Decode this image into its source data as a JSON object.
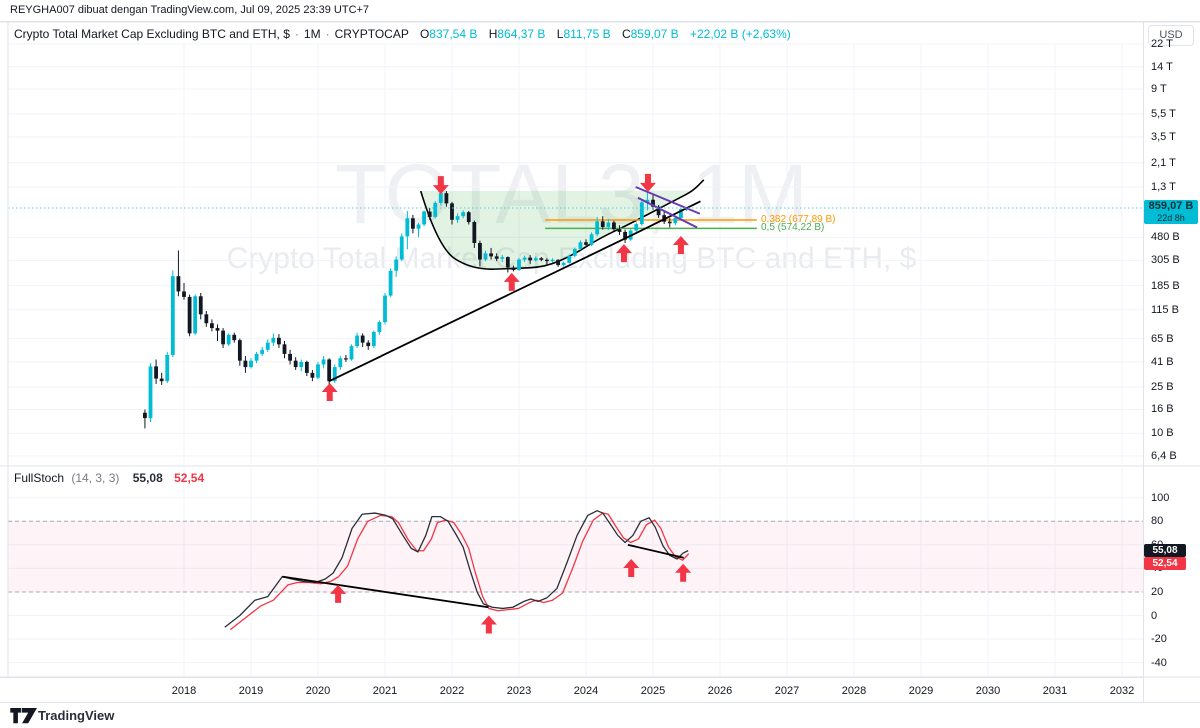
{
  "user_bar": {
    "text": "REYGHA007 dibuat dengan TradingView.com, Jul 09, 2025 23:39 UTC+7"
  },
  "legend": {
    "title": "Crypto Total Market Cap Excluding BTC and ETH, $",
    "sep": "·",
    "interval": "1M",
    "exchange": "CRYPTOCAP",
    "o_label": "O",
    "o": "837,54 B",
    "h_label": "H",
    "h": "864,37 B",
    "l_label": "L",
    "l": "811,75 B",
    "c_label": "C",
    "c": "859,07 B",
    "change": "+22,02 B (+2,63%)"
  },
  "axis": {
    "currency_button": "USD",
    "price_ticks": [
      {
        "v": 22000,
        "t": "22 T"
      },
      {
        "v": 14000,
        "t": "14 T"
      },
      {
        "v": 9000,
        "t": "9 T"
      },
      {
        "v": 5500,
        "t": "5,5 T"
      },
      {
        "v": 3500,
        "t": "3,5 T"
      },
      {
        "v": 2100,
        "t": "2,1 T"
      },
      {
        "v": 1300,
        "t": "1,3 T"
      },
      {
        "v": 480,
        "t": "480 B"
      },
      {
        "v": 305,
        "t": "305 B"
      },
      {
        "v": 185,
        "t": "185 B"
      },
      {
        "v": 115,
        "t": "115 B"
      },
      {
        "v": 65,
        "t": "65 B"
      },
      {
        "v": 41,
        "t": "41 B"
      },
      {
        "v": 25,
        "t": "25 B"
      },
      {
        "v": 16,
        "t": "16 B"
      },
      {
        "v": 10,
        "t": "10 B"
      },
      {
        "v": 6.4,
        "t": "6,4 B"
      }
    ],
    "stoch_ticks": [
      {
        "v": 100,
        "t": "100"
      },
      {
        "v": 80,
        "t": "80"
      },
      {
        "v": 60,
        "t": "60"
      },
      {
        "v": 40,
        "t": "40"
      },
      {
        "v": 20,
        "t": "20"
      },
      {
        "v": 0,
        "t": "0"
      },
      {
        "v": -20,
        "t": "-20"
      },
      {
        "v": -40,
        "t": "-40"
      }
    ],
    "years": [
      "2018",
      "2019",
      "2020",
      "2021",
      "2022",
      "2023",
      "2024",
      "2025",
      "2026",
      "2027",
      "2028",
      "2029",
      "2030",
      "2031",
      "2032"
    ]
  },
  "price_badge": {
    "price": "859,07 B",
    "countdown": "22d 8h"
  },
  "indicator": {
    "name": "FullStoch",
    "params": "(14, 3, 3)",
    "k_value": "55,08",
    "d_value": "52,54"
  },
  "fib_levels": [
    {
      "label": "0,382 (677,89 B)",
      "value": 677.89,
      "color": "#ff9800",
      "m1": 64.7,
      "m2": 102.6
    },
    {
      "label": "0,5 (574,22 B)",
      "value": 574.22,
      "color": "#4caf50",
      "m1": 64.7,
      "m2": 102.6
    }
  ],
  "watermark": {
    "line1": "TOTAL3, 1M",
    "line2": "Crypto Total Market Cap Excluding BTC and ETH, $"
  },
  "footer": {
    "logo_text": "TradingView"
  },
  "colors": {
    "up": "#00bcd4",
    "down": "#131722",
    "arrow": "#f23645",
    "purple": "#673ab7",
    "trend": "#000000",
    "grid": "#f0f3fa",
    "stoch_k": "#2a2e39",
    "stoch_d": "#f23645",
    "band_border": "#a9acb5",
    "band_fill": "rgba(236,64,122,0.06)",
    "cup_fill": "rgba(76,175,80,0.16)",
    "price_line": "#4dd0e1"
  },
  "chart_data": {
    "type": "candlestick",
    "title": "Crypto Total Market Cap Excluding BTC and ETH, $",
    "symbol": "CRYPTOCAP:TOTAL3",
    "interval": "1M",
    "price_scale": "log",
    "price_axis_range_billions": [
      6.4,
      22000
    ],
    "time_axis_range": [
      "2017-06",
      "2032-12"
    ],
    "last_price": 859.07,
    "last_change": "+22,02 B (+2,63%)",
    "countdown": "22d 8h",
    "candles_unit": "billions USD [month, open, high, low, close]",
    "candles": [
      [
        "2017-06",
        15,
        16,
        11,
        13.5
      ],
      [
        "2017-07",
        13.5,
        40,
        12.5,
        37.5
      ],
      [
        "2017-08",
        37.5,
        43,
        26.5,
        29.5
      ],
      [
        "2017-09",
        29.5,
        33,
        26,
        28
      ],
      [
        "2017-10",
        28,
        50,
        27,
        47
      ],
      [
        "2017-11",
        47,
        250,
        45,
        223
      ],
      [
        "2017-12",
        223,
        371,
        150,
        165
      ],
      [
        "2018-01",
        165,
        195,
        140,
        148
      ],
      [
        "2018-02",
        148,
        155,
        68,
        72
      ],
      [
        "2018-03",
        72,
        155,
        70,
        150
      ],
      [
        "2018-04",
        150,
        160,
        95,
        105
      ],
      [
        "2018-05",
        105,
        112,
        82,
        88
      ],
      [
        "2018-06",
        88,
        95,
        75,
        80
      ],
      [
        "2018-07",
        80,
        86,
        62,
        76
      ],
      [
        "2018-08",
        76,
        80,
        54,
        58
      ],
      [
        "2018-09",
        58,
        72,
        56,
        70
      ],
      [
        "2018-10",
        70,
        73,
        60,
        63
      ],
      [
        "2018-11",
        63,
        65,
        38,
        42
      ],
      [
        "2018-12",
        42,
        46,
        33,
        37
      ],
      [
        "2019-01",
        37,
        44,
        36,
        42
      ],
      [
        "2019-02",
        42,
        50,
        40,
        48
      ],
      [
        "2019-03",
        48,
        55,
        46,
        52
      ],
      [
        "2019-04",
        52,
        64,
        50,
        60
      ],
      [
        "2019-05",
        60,
        72,
        56,
        66
      ],
      [
        "2019-06",
        66,
        71,
        54,
        58
      ],
      [
        "2019-07",
        58,
        62,
        44,
        48
      ],
      [
        "2019-08",
        48,
        52,
        39,
        42
      ],
      [
        "2019-09",
        42,
        45,
        35,
        37
      ],
      [
        "2019-10",
        37,
        43,
        34,
        41
      ],
      [
        "2019-11",
        41,
        42,
        31,
        33
      ],
      [
        "2019-12",
        33,
        35,
        28,
        30
      ],
      [
        "2020-01",
        30,
        41,
        29,
        39
      ],
      [
        "2020-02",
        39,
        46,
        36,
        43
      ],
      [
        "2020-03",
        43,
        44,
        20,
        28
      ],
      [
        "2020-04",
        28,
        39,
        27,
        37
      ],
      [
        "2020-05",
        37,
        46,
        35,
        44
      ],
      [
        "2020-06",
        44,
        47,
        41,
        43
      ],
      [
        "2020-07",
        43,
        58,
        42,
        56
      ],
      [
        "2020-08",
        56,
        73,
        54,
        69
      ],
      [
        "2020-09",
        69,
        72,
        55,
        60
      ],
      [
        "2020-10",
        60,
        63,
        52,
        56
      ],
      [
        "2020-11",
        56,
        76,
        54,
        74
      ],
      [
        "2020-12",
        74,
        93,
        70,
        90
      ],
      [
        "2021-01",
        90,
        160,
        86,
        152
      ],
      [
        "2021-02",
        152,
        260,
        148,
        248
      ],
      [
        "2021-03",
        248,
        330,
        220,
        310
      ],
      [
        "2021-04",
        310,
        520,
        300,
        490
      ],
      [
        "2021-05",
        490,
        810,
        380,
        700
      ],
      [
        "2021-06",
        700,
        750,
        520,
        570
      ],
      [
        "2021-07",
        570,
        640,
        480,
        620
      ],
      [
        "2021-08",
        620,
        820,
        600,
        800
      ],
      [
        "2021-09",
        800,
        860,
        680,
        720
      ],
      [
        "2021-10",
        720,
        980,
        700,
        950
      ],
      [
        "2021-11",
        950,
        1230,
        900,
        1150
      ],
      [
        "2021-12",
        1150,
        1200,
        880,
        940
      ],
      [
        "2022-01",
        940,
        970,
        620,
        680
      ],
      [
        "2022-02",
        680,
        770,
        640,
        730
      ],
      [
        "2022-03",
        730,
        820,
        700,
        790
      ],
      [
        "2022-04",
        790,
        810,
        620,
        650
      ],
      [
        "2022-05",
        650,
        670,
        390,
        430
      ],
      [
        "2022-06",
        430,
        450,
        270,
        310
      ],
      [
        "2022-07",
        310,
        370,
        300,
        350
      ],
      [
        "2022-08",
        350,
        390,
        310,
        330
      ],
      [
        "2022-09",
        330,
        350,
        300,
        315
      ],
      [
        "2022-10",
        315,
        340,
        295,
        325
      ],
      [
        "2022-11",
        325,
        330,
        240,
        265
      ],
      [
        "2022-12",
        265,
        275,
        245,
        252
      ],
      [
        "2023-01",
        252,
        320,
        248,
        310
      ],
      [
        "2023-02",
        310,
        335,
        295,
        322
      ],
      [
        "2023-03",
        322,
        338,
        285,
        305
      ],
      [
        "2023-04",
        305,
        330,
        298,
        318
      ],
      [
        "2023-05",
        318,
        326,
        300,
        308
      ],
      [
        "2023-06",
        308,
        318,
        282,
        302
      ],
      [
        "2023-07",
        302,
        318,
        292,
        308
      ],
      [
        "2023-08",
        308,
        312,
        268,
        278
      ],
      [
        "2023-09",
        278,
        298,
        270,
        290
      ],
      [
        "2023-10",
        290,
        342,
        286,
        334
      ],
      [
        "2023-11",
        334,
        392,
        326,
        382
      ],
      [
        "2023-12",
        382,
        452,
        374,
        436
      ],
      [
        "2024-01",
        436,
        462,
        392,
        415
      ],
      [
        "2024-02",
        415,
        530,
        405,
        510
      ],
      [
        "2024-03",
        510,
        720,
        490,
        660
      ],
      [
        "2024-04",
        660,
        730,
        560,
        590
      ],
      [
        "2024-05",
        590,
        690,
        555,
        645
      ],
      [
        "2024-06",
        645,
        668,
        545,
        565
      ],
      [
        "2024-07",
        565,
        610,
        505,
        535
      ],
      [
        "2024-08",
        535,
        560,
        430,
        460
      ],
      [
        "2024-09",
        460,
        565,
        450,
        550
      ],
      [
        "2024-10",
        550,
        645,
        525,
        625
      ],
      [
        "2024-11",
        625,
        1010,
        605,
        960
      ],
      [
        "2024-12",
        960,
        1160,
        820,
        1010
      ],
      [
        "2025-01",
        1010,
        1105,
        830,
        880
      ],
      [
        "2025-02",
        880,
        910,
        705,
        745
      ],
      [
        "2025-03",
        745,
        795,
        625,
        655
      ],
      [
        "2025-04",
        655,
        705,
        585,
        635
      ],
      [
        "2025-05",
        635,
        725,
        615,
        705
      ],
      [
        "2025-06",
        705,
        855,
        685,
        838
      ],
      [
        "2025-07",
        837.54,
        864.37,
        811.75,
        859.07
      ]
    ],
    "annotations": {
      "cup_arc": [
        [
          42.4,
          1200
        ],
        [
          45.5,
          390
        ],
        [
          51.6,
          253
        ],
        [
          59.6,
          260
        ],
        [
          64.7,
          268
        ],
        [
          69.5,
          335
        ],
        [
          74.5,
          474
        ],
        [
          79.5,
          615
        ],
        [
          83.5,
          776
        ],
        [
          88.8,
          1050
        ],
        [
          91.2,
          1210
        ],
        [
          93.1,
          1500
        ]
      ],
      "trendlines": [
        {
          "m1": 26,
          "p1": 28,
          "m2": 79,
          "p2": 470
        },
        {
          "m1": 79,
          "p1": 470,
          "m2": 92.5,
          "p2": 980
        }
      ],
      "purple_channel": [
        {
          "m1": 80.9,
          "p1": 1300,
          "m2": 92.4,
          "p2": 766
        },
        {
          "m1": 81.3,
          "p1": 1050,
          "m2": 91.9,
          "p2": 584
        }
      ],
      "arrows": [
        {
          "dir": "up",
          "m": 26.1,
          "p": 27
        },
        {
          "dir": "up",
          "m": 58.7,
          "p": 238
        },
        {
          "dir": "up",
          "m": 78.8,
          "p": 420
        },
        {
          "dir": "up",
          "m": 89.0,
          "p": 494
        },
        {
          "dir": "down",
          "m": 46.0,
          "p": 1130
        },
        {
          "dir": "down",
          "m": 83.1,
          "p": 1180
        }
      ]
    },
    "stoch": {
      "name": "FullStoch (14, 3, 3)",
      "k_last": 55.08,
      "d_last": 52.54,
      "band": [
        20,
        80
      ],
      "range": [
        -40,
        100
      ],
      "k": [
        [
          7.3,
          -10
        ],
        [
          10,
          0
        ],
        [
          12.7,
          13
        ],
        [
          15,
          16
        ],
        [
          17.6,
          33
        ],
        [
          19.3,
          31
        ],
        [
          21.3,
          29
        ],
        [
          23.5,
          28
        ],
        [
          25.3,
          31
        ],
        [
          26.7,
          36
        ],
        [
          28.3,
          49
        ],
        [
          30.1,
          74
        ],
        [
          31.9,
          86
        ],
        [
          34.2,
          87
        ],
        [
          36.2,
          85
        ],
        [
          37.4,
          82
        ],
        [
          39.2,
          68
        ],
        [
          40.7,
          57
        ],
        [
          41.9,
          54
        ],
        [
          43.3,
          68
        ],
        [
          44.4,
          84
        ],
        [
          45.9,
          84
        ],
        [
          47.3,
          80
        ],
        [
          48.7,
          69
        ],
        [
          50,
          58
        ],
        [
          51.2,
          39
        ],
        [
          52.5,
          20
        ],
        [
          53.6,
          10
        ],
        [
          55.2,
          7
        ],
        [
          57.1,
          6
        ],
        [
          58.9,
          7
        ],
        [
          60.9,
          12
        ],
        [
          62.1,
          14
        ],
        [
          63.4,
          12
        ],
        [
          65,
          15
        ],
        [
          66.8,
          23
        ],
        [
          68.6,
          45
        ],
        [
          70.4,
          68
        ],
        [
          72.3,
          85
        ],
        [
          74,
          89
        ],
        [
          75,
          87
        ],
        [
          76.3,
          78
        ],
        [
          77.7,
          68
        ],
        [
          79,
          62
        ],
        [
          80.4,
          68
        ],
        [
          81.8,
          80
        ],
        [
          83.3,
          83
        ],
        [
          84.4,
          75
        ],
        [
          85.8,
          59
        ],
        [
          87,
          51
        ],
        [
          88.3,
          48
        ],
        [
          89.4,
          53
        ],
        [
          90.3,
          55.08
        ]
      ],
      "d": [
        [
          8.3,
          -12
        ],
        [
          11,
          -2
        ],
        [
          13.7,
          8
        ],
        [
          16,
          13
        ],
        [
          18.6,
          26
        ],
        [
          20.3,
          28
        ],
        [
          22.3,
          28
        ],
        [
          24.5,
          27
        ],
        [
          26.3,
          29
        ],
        [
          27.7,
          33
        ],
        [
          29.3,
          42
        ],
        [
          31.1,
          65
        ],
        [
          32.9,
          80
        ],
        [
          35.2,
          85
        ],
        [
          37.2,
          84
        ],
        [
          38.4,
          79
        ],
        [
          40.2,
          64
        ],
        [
          41.7,
          55
        ],
        [
          42.9,
          55
        ],
        [
          44.3,
          65
        ],
        [
          45.4,
          79
        ],
        [
          46.9,
          81
        ],
        [
          48.3,
          79
        ],
        [
          49.7,
          69
        ],
        [
          51,
          57
        ],
        [
          52.2,
          36
        ],
        [
          53.5,
          16
        ],
        [
          54.6,
          6
        ],
        [
          56.2,
          4
        ],
        [
          58.1,
          5
        ],
        [
          59.9,
          6
        ],
        [
          61.9,
          11
        ],
        [
          63.1,
          13
        ],
        [
          64.4,
          11
        ],
        [
          66,
          13
        ],
        [
          67.8,
          19
        ],
        [
          69.6,
          40
        ],
        [
          71.4,
          63
        ],
        [
          73.3,
          81
        ],
        [
          75,
          87
        ],
        [
          76,
          86
        ],
        [
          77.3,
          76
        ],
        [
          78.7,
          66
        ],
        [
          80,
          62
        ],
        [
          81.4,
          65
        ],
        [
          82.8,
          77
        ],
        [
          84.3,
          81
        ],
        [
          85.4,
          74
        ],
        [
          86.8,
          58
        ],
        [
          88,
          50
        ],
        [
          89.3,
          47
        ],
        [
          90.4,
          52.54
        ]
      ],
      "trendlines": [
        {
          "m1": 17.6,
          "v1": 33,
          "m2": 54.5,
          "v2": 7
        },
        {
          "m1": 79.5,
          "v1": 60,
          "m2": 89.5,
          "v2": 49
        }
      ],
      "arrows": [
        {
          "dir": "up",
          "m": 27.6,
          "v": 26
        },
        {
          "dir": "up",
          "m": 54.6,
          "v": 0
        },
        {
          "dir": "up",
          "m": 80.1,
          "v": 48
        },
        {
          "dir": "up",
          "m": 89.4,
          "v": 44
        }
      ]
    }
  }
}
